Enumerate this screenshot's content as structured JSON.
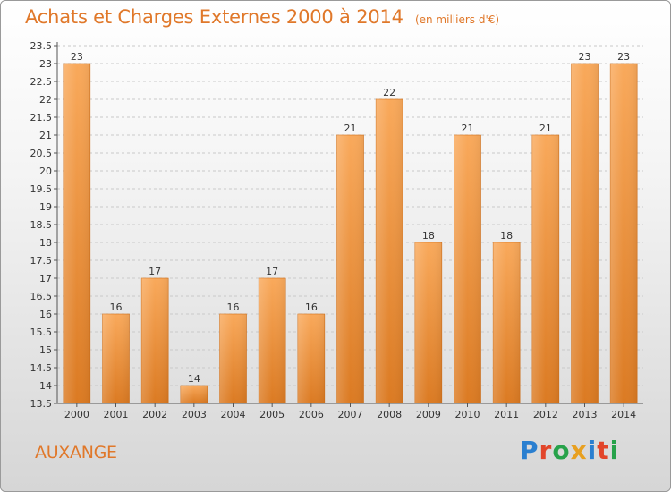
{
  "header": {
    "title": "Achats et Charges Externes 2000 à 2014",
    "subtitle": "(en milliers d'€)"
  },
  "footer": {
    "town": "AUXANGE",
    "logo_text": "Proxiti",
    "logo_colors": [
      "#2a7fd0",
      "#e2452a",
      "#27a24a",
      "#e8a020",
      "#2a7fd0",
      "#e2452a",
      "#27a24a"
    ]
  },
  "colors": {
    "accent": "#e0782a",
    "bar_light": "#f9a95b",
    "bar_dark": "#db7a22"
  },
  "chart_data": {
    "type": "bar",
    "title": "Achats et Charges Externes 2000 à 2014",
    "subtitle": "(en milliers d'€)",
    "categories": [
      "2000",
      "2001",
      "2002",
      "2003",
      "2004",
      "2005",
      "2006",
      "2007",
      "2008",
      "2009",
      "2010",
      "2011",
      "2012",
      "2013",
      "2014"
    ],
    "values": [
      23,
      16,
      17,
      14,
      16,
      17,
      16,
      21,
      22,
      18,
      21,
      18,
      21,
      23,
      23
    ],
    "ylim": [
      13.5,
      23.5
    ],
    "yticks": [
      "13.5",
      "14",
      "14.5",
      "15",
      "15.5",
      "16",
      "16.5",
      "17",
      "17.5",
      "18",
      "18.5",
      "19",
      "19.5",
      "20",
      "20.5",
      "21",
      "21.5",
      "22",
      "22.5",
      "23",
      "23.5"
    ],
    "xlabel": "",
    "ylabel": "",
    "grid": true,
    "legend": "none"
  }
}
